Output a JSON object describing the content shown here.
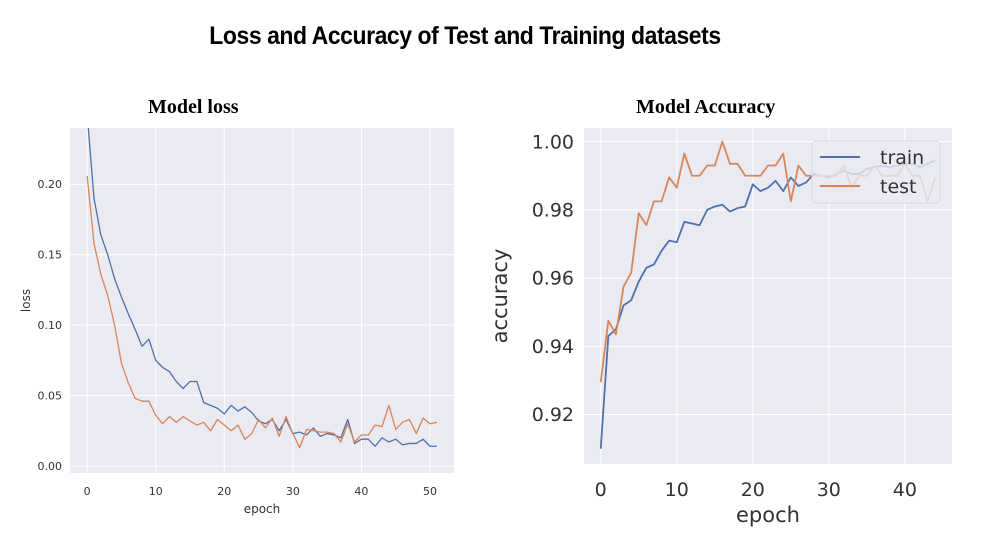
{
  "page": {
    "title": "Loss and Accuracy of Test and Training datasets"
  },
  "charts": {
    "loss_title": "Model loss",
    "accuracy_title": "Model Accuracy"
  },
  "colors": {
    "background": "#eaeaf2",
    "grid": "#ffffff",
    "train": "#4c72b0",
    "test": "#dd8452"
  },
  "chart_data": [
    {
      "type": "line",
      "title": "Model loss",
      "xlabel": "epoch",
      "ylabel": "loss",
      "xlim": [
        -2.5,
        53.5
      ],
      "ylim": [
        -0.005,
        0.24
      ],
      "xticks": [
        0,
        10,
        20,
        30,
        40,
        50
      ],
      "xtick_labels": [
        "0",
        "10",
        "20",
        "30",
        "40",
        "50"
      ],
      "yticks": [
        0.0,
        0.05,
        0.1,
        0.15,
        0.2
      ],
      "ytick_labels": [
        "0.00",
        "0.05",
        "0.10",
        "0.15",
        "0.20"
      ],
      "grid": true,
      "legend": "none",
      "series": [
        {
          "key": "train",
          "color": "#4c72b0",
          "values": [
            0.25,
            0.19,
            0.164,
            0.15,
            0.133,
            0.12,
            0.108,
            0.097,
            0.085,
            0.09,
            0.075,
            0.07,
            0.067,
            0.06,
            0.055,
            0.06,
            0.06,
            0.045,
            0.043,
            0.041,
            0.037,
            0.043,
            0.039,
            0.042,
            0.038,
            0.032,
            0.03,
            0.033,
            0.025,
            0.033,
            0.023,
            0.024,
            0.022,
            0.027,
            0.021,
            0.023,
            0.022,
            0.02,
            0.033,
            0.016,
            0.019,
            0.019,
            0.014,
            0.02,
            0.017,
            0.019,
            0.015,
            0.016,
            0.016,
            0.019,
            0.014,
            0.014
          ]
        },
        {
          "key": "test",
          "color": "#dd8452",
          "values": [
            0.206,
            0.158,
            0.136,
            0.121,
            0.1,
            0.073,
            0.059,
            0.048,
            0.046,
            0.046,
            0.036,
            0.03,
            0.035,
            0.031,
            0.035,
            0.032,
            0.029,
            0.031,
            0.025,
            0.033,
            0.029,
            0.025,
            0.029,
            0.019,
            0.023,
            0.033,
            0.027,
            0.034,
            0.021,
            0.035,
            0.023,
            0.013,
            0.026,
            0.025,
            0.024,
            0.024,
            0.023,
            0.017,
            0.03,
            0.017,
            0.022,
            0.022,
            0.029,
            0.028,
            0.043,
            0.026,
            0.031,
            0.033,
            0.023,
            0.034,
            0.03,
            0.031
          ]
        }
      ]
    },
    {
      "type": "line",
      "title": "Model Accuracy",
      "xlabel": "epoch",
      "ylabel": "accuracy",
      "xlim": [
        -2.2,
        46.2
      ],
      "ylim": [
        0.9055,
        1.004
      ],
      "xticks": [
        0,
        10,
        20,
        30,
        40
      ],
      "xtick_labels": [
        "0",
        "10",
        "20",
        "30",
        "40"
      ],
      "yticks": [
        0.92,
        0.94,
        0.96,
        0.98,
        1.0
      ],
      "ytick_labels": [
        "0.92",
        "0.94",
        "0.96",
        "0.98",
        "1.00"
      ],
      "grid": true,
      "legend": "top-right",
      "series": [
        {
          "name": "train",
          "color": "#4c72b0",
          "values": [
            0.91,
            0.943,
            0.945,
            0.952,
            0.9535,
            0.959,
            0.963,
            0.964,
            0.968,
            0.971,
            0.9705,
            0.9765,
            0.976,
            0.9755,
            0.98,
            0.981,
            0.9815,
            0.9795,
            0.9805,
            0.981,
            0.9875,
            0.9855,
            0.9865,
            0.9885,
            0.9855,
            0.9895,
            0.987,
            0.988,
            0.9905,
            0.99,
            0.9895,
            0.9905,
            0.9915,
            0.9905,
            0.9905,
            0.992,
            0.9925,
            0.993,
            0.9925,
            0.993,
            0.9935,
            0.9935,
            0.9925,
            0.9935,
            0.9945
          ]
        },
        {
          "name": "test",
          "color": "#dd8452",
          "values": [
            0.9295,
            0.9475,
            0.9435,
            0.9575,
            0.9615,
            0.979,
            0.9755,
            0.9825,
            0.9825,
            0.9895,
            0.9865,
            0.9965,
            0.99,
            0.99,
            0.993,
            0.993,
            1.0,
            0.9935,
            0.9935,
            0.99,
            0.99,
            0.99,
            0.993,
            0.993,
            0.9965,
            0.9825,
            0.993,
            0.99,
            0.99,
            0.99,
            0.99,
            0.99,
            0.993,
            0.9865,
            0.99,
            0.99,
            0.993,
            0.99,
            0.99,
            0.99,
            0.9935,
            0.99,
            0.99,
            0.9825,
            0.9895
          ]
        }
      ]
    }
  ]
}
